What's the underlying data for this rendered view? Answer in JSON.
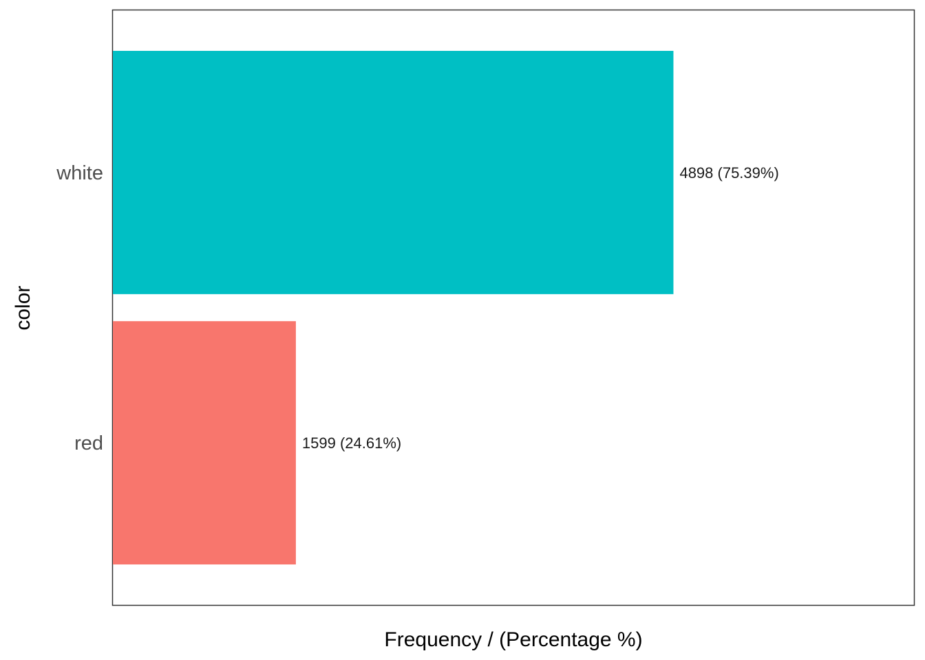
{
  "chart_data": {
    "type": "bar",
    "orientation": "horizontal",
    "title": "",
    "xlabel": "Frequency / (Percentage %)",
    "ylabel": "color",
    "categories": [
      "red",
      "white"
    ],
    "values": [
      1599,
      4898
    ],
    "percentages": [
      24.61,
      75.39
    ],
    "data_labels": [
      "1599 (24.61%)",
      "4898 (75.39%)"
    ],
    "colors": [
      "#F8766D",
      "#00BFC4"
    ],
    "xlim": [
      0,
      7000
    ],
    "grid": false,
    "legend": "none"
  }
}
